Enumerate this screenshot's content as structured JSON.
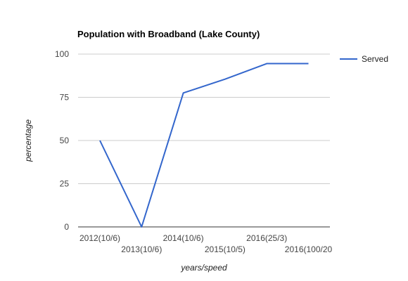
{
  "chart_data": {
    "type": "line",
    "title": "Population with Broadband (Lake County)",
    "xlabel": "years/speed",
    "ylabel": "percentage",
    "categories": [
      "2012(10/6)",
      "2013(10/6)",
      "2014(10/6)",
      "2015(10/5)",
      "2016(25/3)",
      "2016(100/20"
    ],
    "series": [
      {
        "name": "Served",
        "values": [
          50,
          0,
          77.5,
          85.5,
          94.5,
          94.5
        ],
        "color": "#3366cc"
      }
    ],
    "ylim": [
      0,
      100
    ],
    "yticks": [
      0,
      25,
      50,
      75,
      100
    ],
    "grid": true,
    "legend": "right"
  }
}
